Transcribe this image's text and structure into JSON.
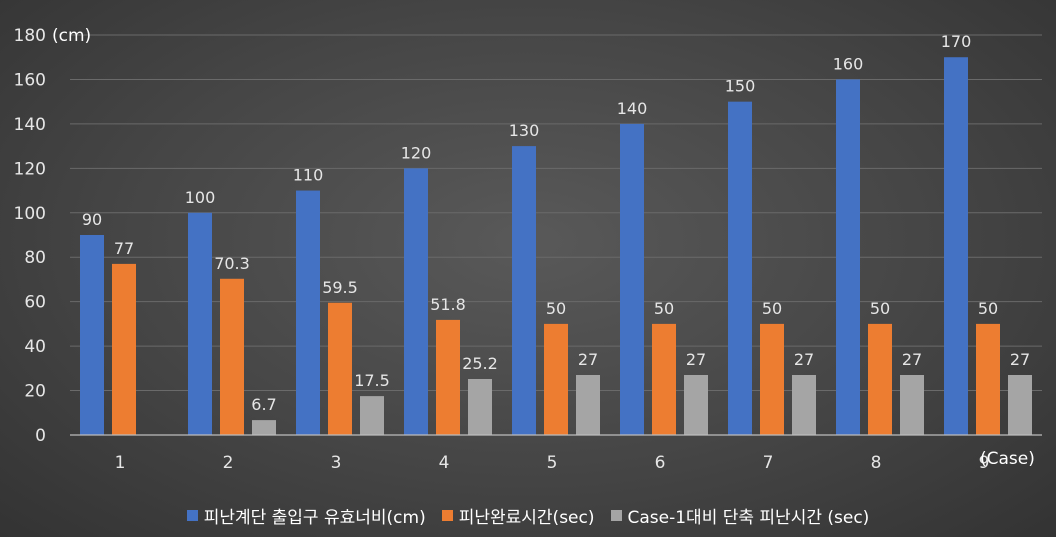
{
  "chart_data": {
    "type": "bar",
    "categories": [
      "1",
      "2",
      "3",
      "4",
      "5",
      "6",
      "7",
      "8",
      "9"
    ],
    "series": [
      {
        "name": "피난계단 출입구 유효너비(cm)",
        "color": "#4472C4",
        "values": [
          90,
          100,
          110,
          120,
          130,
          140,
          150,
          160,
          170
        ],
        "labels": [
          "90",
          "100",
          "110",
          "120",
          "130",
          "140",
          "150",
          "160",
          "170"
        ]
      },
      {
        "name": "피난완료시간(sec)",
        "color": "#ED7D31",
        "values": [
          77,
          70.3,
          59.5,
          51.8,
          50,
          50,
          50,
          50,
          50
        ],
        "labels": [
          "77",
          "70.3",
          "59.5",
          "51.8",
          "50",
          "50",
          "50",
          "50",
          "50"
        ]
      },
      {
        "name": "Case-1대비 단축 피난시간 (sec)",
        "color": "#A5A5A5",
        "values": [
          null,
          6.7,
          17.5,
          25.2,
          27,
          27,
          27,
          27,
          27
        ],
        "labels": [
          "",
          "6.7",
          "17.5",
          "25.2",
          "27",
          "27",
          "27",
          "27",
          "27"
        ]
      }
    ],
    "y_ticks": [
      "0",
      "20",
      "40",
      "60",
      "80",
      "100",
      "120",
      "140",
      "160",
      "180"
    ],
    "ylim": [
      0,
      180
    ],
    "y_unit": "(cm)",
    "x_unit": "(Case)",
    "grid": true,
    "legend_position": "bottom"
  }
}
